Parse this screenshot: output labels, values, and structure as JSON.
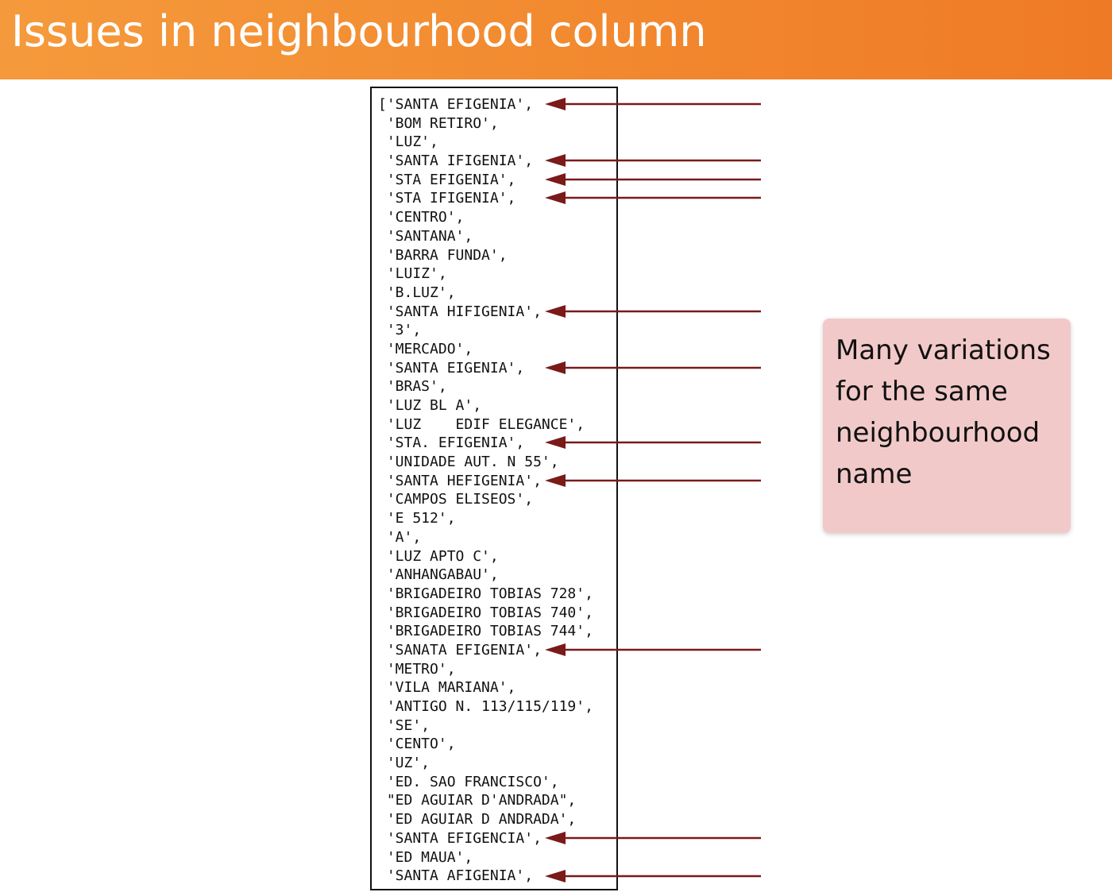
{
  "slide": {
    "title": "Issues in neighbourhood column",
    "callout": "Many variations for the same neighbourhood name",
    "colors": {
      "header": "#f28a30",
      "title_text": "#ffffff",
      "arrow": "#7a1a1a",
      "callout_bg": "#f2c9c9"
    }
  },
  "code_lines": [
    {
      "text": "['SANTA EFIGENIA',",
      "arrow": true
    },
    {
      "text": " 'BOM RETIRO',",
      "arrow": false
    },
    {
      "text": " 'LUZ',",
      "arrow": false
    },
    {
      "text": " 'SANTA IFIGENIA',",
      "arrow": true
    },
    {
      "text": " 'STA EFIGENIA',",
      "arrow": true
    },
    {
      "text": " 'STA IFIGENIA',",
      "arrow": true
    },
    {
      "text": " 'CENTRO',",
      "arrow": false
    },
    {
      "text": " 'SANTANA',",
      "arrow": false
    },
    {
      "text": " 'BARRA FUNDA',",
      "arrow": false
    },
    {
      "text": " 'LUIZ',",
      "arrow": false
    },
    {
      "text": " 'B.LUZ',",
      "arrow": false
    },
    {
      "text": " 'SANTA HIFIGENIA',",
      "arrow": true
    },
    {
      "text": " '3',",
      "arrow": false
    },
    {
      "text": " 'MERCADO',",
      "arrow": false
    },
    {
      "text": " 'SANTA EIGENIA',",
      "arrow": true
    },
    {
      "text": " 'BRAS',",
      "arrow": false
    },
    {
      "text": " 'LUZ BL A',",
      "arrow": false
    },
    {
      "text": " 'LUZ    EDIF ELEGANCE',",
      "arrow": false
    },
    {
      "text": " 'STA. EFIGENIA',",
      "arrow": true
    },
    {
      "text": " 'UNIDADE AUT. N 55',",
      "arrow": false
    },
    {
      "text": " 'SANTA HEFIGENIA',",
      "arrow": true
    },
    {
      "text": " 'CAMPOS ELISEOS',",
      "arrow": false
    },
    {
      "text": " 'E 512',",
      "arrow": false
    },
    {
      "text": " 'A',",
      "arrow": false
    },
    {
      "text": " 'LUZ APTO C',",
      "arrow": false
    },
    {
      "text": " 'ANHANGABAU',",
      "arrow": false
    },
    {
      "text": " 'BRIGADEIRO TOBIAS 728',",
      "arrow": false
    },
    {
      "text": " 'BRIGADEIRO TOBIAS 740',",
      "arrow": false
    },
    {
      "text": " 'BRIGADEIRO TOBIAS 744',",
      "arrow": false
    },
    {
      "text": " 'SANATA EFIGENIA',",
      "arrow": true
    },
    {
      "text": " 'METRO',",
      "arrow": false
    },
    {
      "text": " 'VILA MARIANA',",
      "arrow": false
    },
    {
      "text": " 'ANTIGO N. 113/115/119',",
      "arrow": false
    },
    {
      "text": " 'SE',",
      "arrow": false
    },
    {
      "text": " 'CENTO',",
      "arrow": false
    },
    {
      "text": " 'UZ',",
      "arrow": false
    },
    {
      "text": " 'ED. SAO FRANCISCO',",
      "arrow": false
    },
    {
      "text": " \"ED AGUIAR D'ANDRADA\",",
      "arrow": false
    },
    {
      "text": " 'ED AGUIAR D ANDRADA',",
      "arrow": false
    },
    {
      "text": " 'SANTA EFIGENCIA',",
      "arrow": true
    },
    {
      "text": " 'ED MAUA',",
      "arrow": false
    },
    {
      "text": " 'SANTA AFIGENIA',",
      "arrow": true
    }
  ]
}
